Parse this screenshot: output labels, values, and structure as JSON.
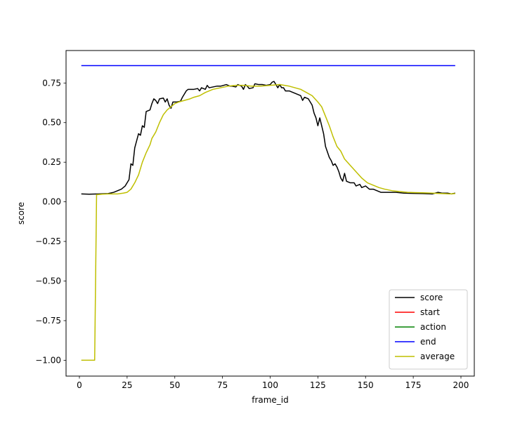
{
  "chart_data": {
    "type": "line",
    "title": "",
    "xlabel": "frame_id",
    "ylabel": "score",
    "xlim": [
      -7,
      207
    ],
    "ylim": [
      -1.1,
      0.955
    ],
    "xticks": [
      0,
      25,
      50,
      75,
      100,
      125,
      150,
      175,
      200
    ],
    "xtick_labels": [
      "0",
      "25",
      "50",
      "75",
      "100",
      "125",
      "150",
      "175",
      "200"
    ],
    "yticks": [
      -1.0,
      -0.75,
      -0.5,
      -0.25,
      0.0,
      0.25,
      0.5,
      0.75
    ],
    "ytick_labels": [
      "−1.00",
      "−0.75",
      "−0.50",
      "−0.25",
      "0.00",
      "0.25",
      "0.50",
      "0.75"
    ],
    "grid": false,
    "legend_position": "lower-right",
    "series": [
      {
        "name": "score",
        "color": "#000000",
        "points": [
          [
            1,
            0.05
          ],
          [
            5,
            0.048
          ],
          [
            10,
            0.05
          ],
          [
            15,
            0.052
          ],
          [
            18,
            0.06
          ],
          [
            20,
            0.07
          ],
          [
            22,
            0.08
          ],
          [
            24,
            0.1
          ],
          [
            26,
            0.14
          ],
          [
            27,
            0.24
          ],
          [
            28,
            0.23
          ],
          [
            29,
            0.34
          ],
          [
            31,
            0.43
          ],
          [
            32,
            0.42
          ],
          [
            33,
            0.48
          ],
          [
            34,
            0.47
          ],
          [
            35,
            0.57
          ],
          [
            37,
            0.58
          ],
          [
            38,
            0.62
          ],
          [
            39,
            0.65
          ],
          [
            40,
            0.64
          ],
          [
            41,
            0.62
          ],
          [
            42,
            0.65
          ],
          [
            44,
            0.655
          ],
          [
            45,
            0.63
          ],
          [
            46,
            0.65
          ],
          [
            47,
            0.61
          ],
          [
            48,
            0.59
          ],
          [
            49,
            0.63
          ],
          [
            51,
            0.63
          ],
          [
            53,
            0.635
          ],
          [
            54,
            0.66
          ],
          [
            56,
            0.7
          ],
          [
            57,
            0.71
          ],
          [
            60,
            0.71
          ],
          [
            62,
            0.715
          ],
          [
            63,
            0.7
          ],
          [
            64,
            0.72
          ],
          [
            66,
            0.71
          ],
          [
            67,
            0.735
          ],
          [
            68,
            0.72
          ],
          [
            70,
            0.725
          ],
          [
            72,
            0.73
          ],
          [
            74,
            0.73
          ],
          [
            77,
            0.74
          ],
          [
            79,
            0.73
          ],
          [
            80,
            0.73
          ],
          [
            82,
            0.725
          ],
          [
            83,
            0.74
          ],
          [
            85,
            0.73
          ],
          [
            86,
            0.71
          ],
          [
            87,
            0.74
          ],
          [
            88,
            0.73
          ],
          [
            89,
            0.715
          ],
          [
            91,
            0.72
          ],
          [
            92,
            0.745
          ],
          [
            94,
            0.74
          ],
          [
            96,
            0.74
          ],
          [
            98,
            0.735
          ],
          [
            100,
            0.74
          ],
          [
            101,
            0.755
          ],
          [
            102,
            0.76
          ],
          [
            103,
            0.74
          ],
          [
            104,
            0.72
          ],
          [
            105,
            0.74
          ],
          [
            106,
            0.72
          ],
          [
            107,
            0.72
          ],
          [
            108,
            0.7
          ],
          [
            110,
            0.7
          ],
          [
            112,
            0.69
          ],
          [
            114,
            0.68
          ],
          [
            116,
            0.67
          ],
          [
            117,
            0.64
          ],
          [
            118,
            0.66
          ],
          [
            120,
            0.65
          ],
          [
            122,
            0.61
          ],
          [
            123,
            0.56
          ],
          [
            124,
            0.53
          ],
          [
            125,
            0.48
          ],
          [
            126,
            0.53
          ],
          [
            128,
            0.43
          ],
          [
            129,
            0.35
          ],
          [
            131,
            0.28
          ],
          [
            132,
            0.26
          ],
          [
            133,
            0.23
          ],
          [
            134,
            0.24
          ],
          [
            135,
            0.22
          ],
          [
            136,
            0.19
          ],
          [
            137,
            0.15
          ],
          [
            138,
            0.13
          ],
          [
            139,
            0.18
          ],
          [
            140,
            0.13
          ],
          [
            142,
            0.12
          ],
          [
            144,
            0.12
          ],
          [
            145,
            0.1
          ],
          [
            147,
            0.11
          ],
          [
            148,
            0.09
          ],
          [
            150,
            0.1
          ],
          [
            152,
            0.08
          ],
          [
            154,
            0.08
          ],
          [
            156,
            0.07
          ],
          [
            158,
            0.06
          ],
          [
            162,
            0.06
          ],
          [
            166,
            0.06
          ],
          [
            170,
            0.055
          ],
          [
            175,
            0.053
          ],
          [
            180,
            0.052
          ],
          [
            185,
            0.05
          ],
          [
            188,
            0.06
          ],
          [
            190,
            0.055
          ],
          [
            193,
            0.055
          ],
          [
            195,
            0.05
          ],
          [
            197,
            0.055
          ]
        ]
      },
      {
        "name": "start",
        "color": "#ff0000",
        "points": []
      },
      {
        "name": "action",
        "color": "#008000",
        "points": []
      },
      {
        "name": "end",
        "color": "#0000ff",
        "points": [
          [
            1,
            0.86
          ],
          [
            197,
            0.86
          ]
        ]
      },
      {
        "name": "average",
        "color": "#bfbf00",
        "points": [
          [
            1,
            -1.0
          ],
          [
            8,
            -1.0
          ],
          [
            9,
            0.045
          ],
          [
            12,
            0.048
          ],
          [
            15,
            0.05
          ],
          [
            20,
            0.05
          ],
          [
            23,
            0.055
          ],
          [
            25,
            0.06
          ],
          [
            27,
            0.08
          ],
          [
            29,
            0.12
          ],
          [
            31,
            0.17
          ],
          [
            33,
            0.25
          ],
          [
            35,
            0.31
          ],
          [
            37,
            0.36
          ],
          [
            38,
            0.4
          ],
          [
            40,
            0.44
          ],
          [
            42,
            0.5
          ],
          [
            44,
            0.55
          ],
          [
            46,
            0.58
          ],
          [
            48,
            0.6
          ],
          [
            50,
            0.62
          ],
          [
            52,
            0.63
          ],
          [
            55,
            0.64
          ],
          [
            58,
            0.65
          ],
          [
            60,
            0.66
          ],
          [
            63,
            0.67
          ],
          [
            66,
            0.69
          ],
          [
            70,
            0.71
          ],
          [
            74,
            0.72
          ],
          [
            78,
            0.73
          ],
          [
            82,
            0.735
          ],
          [
            86,
            0.735
          ],
          [
            90,
            0.73
          ],
          [
            95,
            0.73
          ],
          [
            100,
            0.735
          ],
          [
            105,
            0.74
          ],
          [
            110,
            0.73
          ],
          [
            113,
            0.72
          ],
          [
            116,
            0.71
          ],
          [
            119,
            0.69
          ],
          [
            122,
            0.67
          ],
          [
            125,
            0.63
          ],
          [
            127,
            0.6
          ],
          [
            129,
            0.54
          ],
          [
            131,
            0.48
          ],
          [
            133,
            0.41
          ],
          [
            135,
            0.35
          ],
          [
            137,
            0.32
          ],
          [
            139,
            0.27
          ],
          [
            142,
            0.23
          ],
          [
            145,
            0.19
          ],
          [
            148,
            0.15
          ],
          [
            151,
            0.12
          ],
          [
            154,
            0.105
          ],
          [
            157,
            0.09
          ],
          [
            160,
            0.08
          ],
          [
            164,
            0.07
          ],
          [
            168,
            0.065
          ],
          [
            172,
            0.06
          ],
          [
            176,
            0.058
          ],
          [
            180,
            0.057
          ],
          [
            185,
            0.055
          ],
          [
            190,
            0.052
          ],
          [
            194,
            0.05
          ],
          [
            197,
            0.052
          ]
        ]
      }
    ]
  }
}
